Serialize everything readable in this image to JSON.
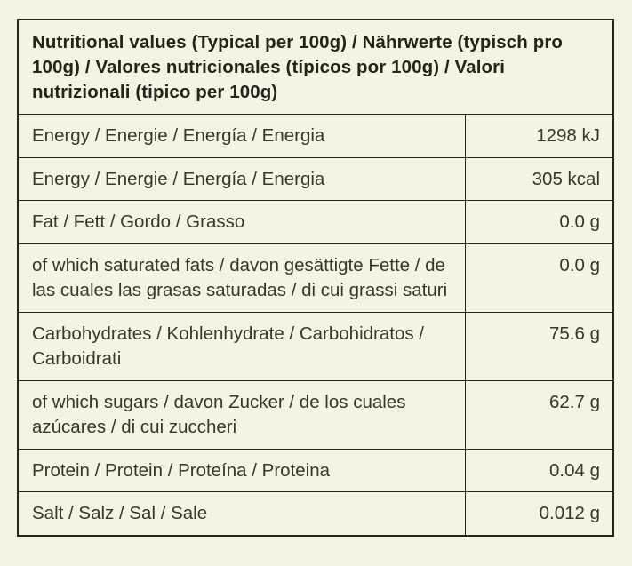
{
  "page": {
    "background_color": "#f7f3e2",
    "border_color": "#26231a",
    "header_text_color": "#26231a",
    "body_text_color": "#3a362c"
  },
  "table": {
    "header": "Nutritional values (Typical per 100g) / Nährwerte (typisch pro 100g) / Valores nutricionales (típicos por 100g) / Valori nutrizionali (tipico per 100g)",
    "rows": [
      {
        "label": "Energy / Energie / Energía / Energia",
        "value": "1298 kJ"
      },
      {
        "label": "Energy / Energie / Energía / Energia",
        "value": "305 kcal"
      },
      {
        "label": "Fat / Fett / Gordo / Grasso",
        "value": "0.0 g"
      },
      {
        "label": "of which saturated fats / davon gesättigte Fette / de las cuales las grasas saturadas / di cui grassi saturi",
        "value": "0.0 g"
      },
      {
        "label": "Carbohydrates / Kohlenhydrate / Carbohidratos / Carboidrati",
        "value": "75.6 g"
      },
      {
        "label": "of which sugars / davon Zucker / de los cuales azúcares / di cui zuccheri",
        "value": "62.7 g"
      },
      {
        "label": "Protein / Protein / Proteína / Proteina",
        "value": "0.04 g"
      },
      {
        "label": "Salt / Salz / Sal / Sale",
        "value": "0.012 g"
      }
    ]
  }
}
